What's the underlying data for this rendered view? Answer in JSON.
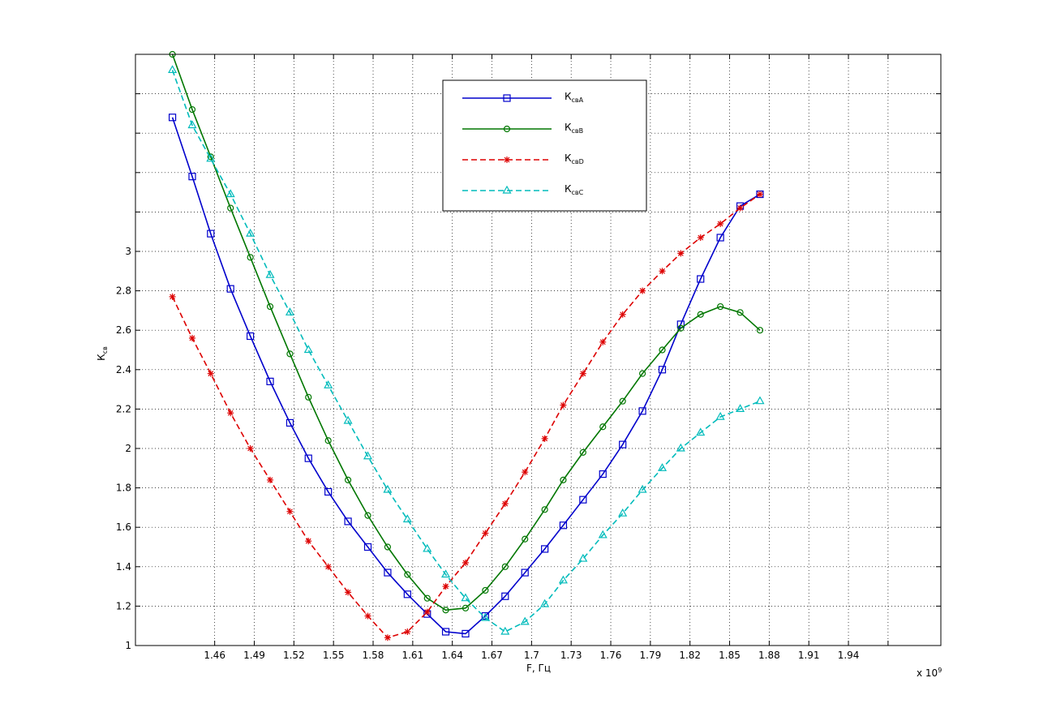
{
  "chart_data": {
    "type": "line",
    "xlabel": "F, Гц",
    "ylabel_main": "К",
    "ylabel_sub": "св",
    "x_exponent_label": "x 10",
    "x_exponent_power": "9",
    "xlim": [
      1.4,
      2.01
    ],
    "ylim": [
      1.0,
      4.0
    ],
    "grid": true,
    "legend_position": "top-center",
    "x_ticks": [
      1.46,
      1.49,
      1.52,
      1.55,
      1.58,
      1.61,
      1.64,
      1.67,
      1.7,
      1.73,
      1.76,
      1.79,
      1.82,
      1.85,
      1.88,
      1.91,
      1.94
    ],
    "x_tick_labels": [
      "1.46",
      "1.49",
      "1.52",
      "1.55",
      "1.58",
      "1.61",
      "1.64",
      "1.67",
      "1.7",
      "1.73",
      "1.76",
      "1.79",
      "1.82",
      "1.85",
      "1.88",
      "1.91",
      "1.94"
    ],
    "x_grid_ticks": [
      1.46,
      1.49,
      1.52,
      1.55,
      1.58,
      1.61,
      1.64,
      1.67,
      1.7,
      1.73,
      1.76,
      1.79,
      1.82,
      1.85,
      1.88,
      1.91,
      1.94,
      1.97
    ],
    "y_ticks": [
      1,
      1.2,
      1.4,
      1.6,
      1.8,
      2,
      2.2,
      2.4,
      2.6,
      2.8,
      3
    ],
    "y_tick_labels": [
      "1",
      "1.2",
      "1.4",
      "1.6",
      "1.8",
      "2",
      "2.2",
      "2.4",
      "2.6",
      "2.8",
      "3"
    ],
    "y_grid_ticks": [
      1,
      1.2,
      1.4,
      1.6,
      1.8,
      2,
      2.2,
      2.4,
      2.6,
      2.8,
      3,
      3.2,
      3.4,
      3.6,
      3.8
    ],
    "x": [
      1.428,
      1.443,
      1.457,
      1.472,
      1.487,
      1.502,
      1.517,
      1.531,
      1.546,
      1.561,
      1.576,
      1.591,
      1.606,
      1.621,
      1.635,
      1.65,
      1.665,
      1.68,
      1.695,
      1.71,
      1.724,
      1.739,
      1.754,
      1.769,
      1.784,
      1.799,
      1.813,
      1.828,
      1.843,
      1.858,
      1.873,
      1.887,
      1.902,
      1.917,
      1.932,
      1.947,
      1.962,
      1.976,
      1.991,
      2.006
    ],
    "series": [
      {
        "name_main": "К",
        "name_sub": "свA",
        "color": "#0000cc",
        "dash": false,
        "marker": "square",
        "points": [
          [
            1.428,
            3.68
          ],
          [
            1.443,
            3.38
          ],
          [
            1.457,
            3.09
          ],
          [
            1.472,
            2.81
          ],
          [
            1.487,
            2.57
          ],
          [
            1.502,
            2.34
          ],
          [
            1.517,
            2.13
          ],
          [
            1.531,
            1.95
          ],
          [
            1.546,
            1.78
          ],
          [
            1.561,
            1.63
          ],
          [
            1.576,
            1.5
          ],
          [
            1.591,
            1.37
          ],
          [
            1.606,
            1.26
          ],
          [
            1.621,
            1.16
          ],
          [
            1.635,
            1.07
          ],
          [
            1.65,
            1.06
          ],
          [
            1.665,
            1.15
          ],
          [
            1.68,
            1.25
          ],
          [
            1.695,
            1.37
          ],
          [
            1.71,
            1.49
          ],
          [
            1.724,
            1.61
          ],
          [
            1.739,
            1.74
          ],
          [
            1.754,
            1.87
          ],
          [
            1.769,
            2.02
          ],
          [
            1.784,
            2.19
          ],
          [
            1.799,
            2.4
          ],
          [
            1.813,
            2.63
          ],
          [
            1.828,
            2.86
          ],
          [
            1.843,
            3.07
          ],
          [
            1.858,
            3.23
          ],
          [
            1.873,
            3.29
          ]
        ]
      },
      {
        "name_main": "К",
        "name_sub": "свB",
        "color": "#007700",
        "dash": false,
        "marker": "circle",
        "points": [
          [
            1.428,
            4.0
          ],
          [
            1.443,
            3.72
          ],
          [
            1.457,
            3.48
          ],
          [
            1.472,
            3.22
          ],
          [
            1.487,
            2.97
          ],
          [
            1.502,
            2.72
          ],
          [
            1.517,
            2.48
          ],
          [
            1.531,
            2.26
          ],
          [
            1.546,
            2.04
          ],
          [
            1.561,
            1.84
          ],
          [
            1.576,
            1.66
          ],
          [
            1.591,
            1.5
          ],
          [
            1.606,
            1.36
          ],
          [
            1.621,
            1.24
          ],
          [
            1.635,
            1.18
          ],
          [
            1.65,
            1.19
          ],
          [
            1.665,
            1.28
          ],
          [
            1.68,
            1.4
          ],
          [
            1.695,
            1.54
          ],
          [
            1.71,
            1.69
          ],
          [
            1.724,
            1.84
          ],
          [
            1.739,
            1.98
          ],
          [
            1.754,
            2.11
          ],
          [
            1.769,
            2.24
          ],
          [
            1.784,
            2.38
          ],
          [
            1.799,
            2.5
          ],
          [
            1.813,
            2.61
          ],
          [
            1.828,
            2.68
          ],
          [
            1.843,
            2.72
          ],
          [
            1.858,
            2.69
          ],
          [
            1.873,
            2.6
          ]
        ]
      },
      {
        "name_main": "К",
        "name_sub": "свD",
        "color": "#dd0000",
        "dash": true,
        "marker": "star",
        "points": [
          [
            1.428,
            2.77
          ],
          [
            1.443,
            2.56
          ],
          [
            1.457,
            2.38
          ],
          [
            1.472,
            2.18
          ],
          [
            1.487,
            2.0
          ],
          [
            1.502,
            1.84
          ],
          [
            1.517,
            1.68
          ],
          [
            1.531,
            1.53
          ],
          [
            1.546,
            1.4
          ],
          [
            1.561,
            1.27
          ],
          [
            1.576,
            1.15
          ],
          [
            1.591,
            1.04
          ],
          [
            1.606,
            1.07
          ],
          [
            1.621,
            1.17
          ],
          [
            1.635,
            1.3
          ],
          [
            1.65,
            1.42
          ],
          [
            1.665,
            1.57
          ],
          [
            1.68,
            1.72
          ],
          [
            1.695,
            1.88
          ],
          [
            1.71,
            2.05
          ],
          [
            1.724,
            2.22
          ],
          [
            1.739,
            2.38
          ],
          [
            1.754,
            2.54
          ],
          [
            1.769,
            2.68
          ],
          [
            1.784,
            2.8
          ],
          [
            1.799,
            2.9
          ],
          [
            1.813,
            2.99
          ],
          [
            1.828,
            3.07
          ],
          [
            1.843,
            3.14
          ],
          [
            1.858,
            3.22
          ],
          [
            1.873,
            3.29
          ]
        ]
      },
      {
        "name_main": "К",
        "name_sub": "свC",
        "color": "#00bbbb",
        "dash": true,
        "marker": "triangle",
        "points": [
          [
            1.428,
            3.92
          ],
          [
            1.443,
            3.64
          ],
          [
            1.457,
            3.47
          ],
          [
            1.472,
            3.29
          ],
          [
            1.487,
            3.09
          ],
          [
            1.502,
            2.88
          ],
          [
            1.517,
            2.69
          ],
          [
            1.531,
            2.5
          ],
          [
            1.546,
            2.32
          ],
          [
            1.561,
            2.14
          ],
          [
            1.576,
            1.96
          ],
          [
            1.591,
            1.79
          ],
          [
            1.606,
            1.64
          ],
          [
            1.621,
            1.49
          ],
          [
            1.635,
            1.36
          ],
          [
            1.65,
            1.24
          ],
          [
            1.665,
            1.14
          ],
          [
            1.68,
            1.07
          ],
          [
            1.695,
            1.12
          ],
          [
            1.71,
            1.21
          ],
          [
            1.724,
            1.33
          ],
          [
            1.739,
            1.44
          ],
          [
            1.754,
            1.56
          ],
          [
            1.769,
            1.67
          ],
          [
            1.784,
            1.79
          ],
          [
            1.799,
            1.9
          ],
          [
            1.813,
            2.0
          ],
          [
            1.828,
            2.08
          ],
          [
            1.843,
            2.16
          ],
          [
            1.858,
            2.2
          ],
          [
            1.873,
            2.24
          ]
        ]
      }
    ]
  }
}
